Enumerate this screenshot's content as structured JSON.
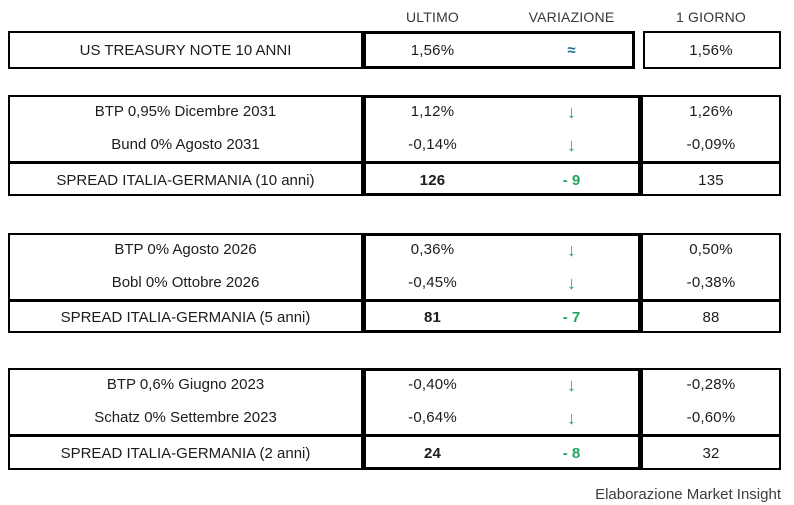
{
  "colors": {
    "green": "#22a45f",
    "blue": "#1f6e96",
    "border": "#000000",
    "text": "#1c1c1c"
  },
  "header": {
    "columns": [
      "ULTIMO",
      "VARIAZIONE",
      "1 GIORNO"
    ]
  },
  "sections": [
    {
      "rows": [
        {
          "label": "US TREASURY NOTE 10 ANNI",
          "ultimo": "1,56%",
          "variazione": "≈",
          "direction": "flat",
          "giorno": "1,56%"
        }
      ]
    },
    {
      "rows": [
        {
          "label": "BTP 0,95% Dicembre 2031",
          "ultimo": "1,12%",
          "variazione": "↓",
          "direction": "down",
          "giorno": "1,26%"
        },
        {
          "label": "Bund 0% Agosto 2031",
          "ultimo": "-0,14%",
          "variazione": "↓",
          "direction": "down",
          "giorno": "-0,09%"
        },
        {
          "label": "SPREAD ITALIA-GERMANIA (10 anni)",
          "ultimo": "126",
          "variazione": "- 9",
          "direction": "down",
          "giorno": "135"
        }
      ]
    },
    {
      "rows": [
        {
          "label": "BTP 0% Agosto 2026",
          "ultimo": "0,36%",
          "variazione": "↓",
          "direction": "down",
          "giorno": "0,50%"
        },
        {
          "label": "Bobl 0% Ottobre 2026",
          "ultimo": "-0,45%",
          "variazione": "↓",
          "direction": "down",
          "giorno": "-0,38%"
        },
        {
          "label": "SPREAD ITALIA-GERMANIA (5 anni)",
          "ultimo": "81",
          "variazione": "- 7",
          "direction": "down",
          "giorno": "88"
        }
      ]
    },
    {
      "rows": [
        {
          "label": "BTP 0,6% Giugno 2023",
          "ultimo": "-0,40%",
          "variazione": "↓",
          "direction": "down",
          "giorno": "-0,28%"
        },
        {
          "label": "Schatz 0% Settembre 2023",
          "ultimo": "-0,64%",
          "variazione": "↓",
          "direction": "down",
          "giorno": "-0,60%"
        },
        {
          "label": "SPREAD ITALIA-GERMANIA (2 anni)",
          "ultimo": "24",
          "variazione": "- 8",
          "direction": "down",
          "giorno": "32"
        }
      ]
    }
  ],
  "footer": {
    "credit": "Elaborazione Market Insight"
  }
}
